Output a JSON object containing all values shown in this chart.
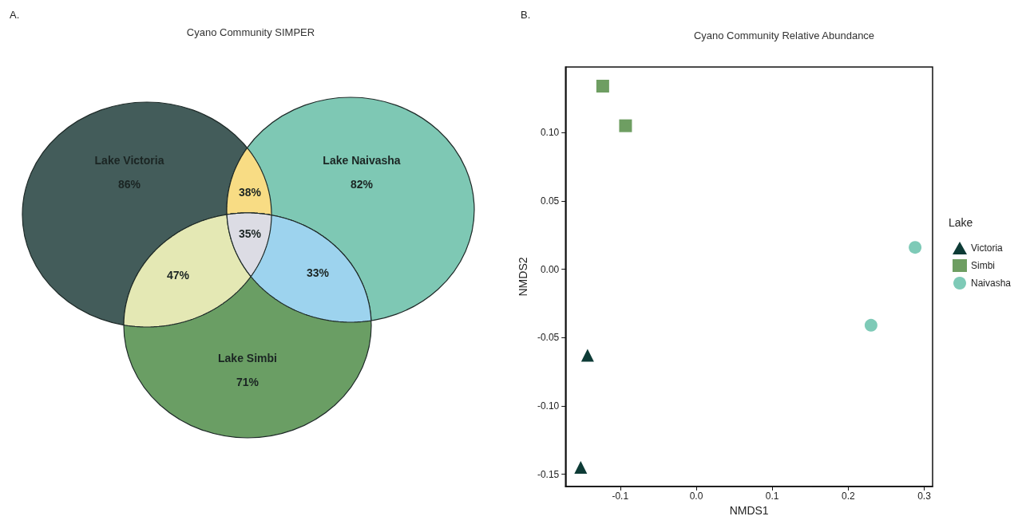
{
  "chart_data": [
    {
      "type": "other",
      "title": "Cyano Community SIMPER",
      "annotations": [
        "A."
      ],
      "categories": [
        "Lake Victoria",
        "Lake Naivasha",
        "Lake Simbi",
        null,
        null,
        null,
        null
      ],
      "value_labels": [
        "86%",
        "82%",
        "71%",
        "38%",
        "47%",
        "33%",
        "35%"
      ],
      "colors": [
        "#435c5a",
        "#7ec8b4",
        "#6a9e64",
        "#f8dc84",
        "#e4e8b4",
        "#9dd3ee",
        "#dcdce4"
      ]
    },
    {
      "type": "scatter",
      "title": "Cyano Community Relative Abundance",
      "annotations": [
        "B."
      ],
      "xlabel": "NMDS1",
      "ylabel": "NMDS2",
      "legend_title": "Lake",
      "legend": "right",
      "grid": false,
      "xlim": [
        -0.172,
        0.311
      ],
      "xticks": [
        -0.1,
        {
          "value": 0,
          "label": "0.0"
        },
        0.1,
        0.2,
        0.3
      ],
      "ylim": [
        -0.159,
        0.148
      ],
      "yticks": [
        -0.15,
        {
          "value": -0.1,
          "label": "-0.10"
        },
        -0.05,
        {
          "value": 0,
          "label": "0.00"
        },
        0.05,
        {
          "value": 0.1,
          "label": "0.10"
        }
      ],
      "series": [
        {
          "name": "Victoria",
          "color": "#0d3b36",
          "marker": "triangle",
          "x": [
            -0.143,
            -0.152
          ],
          "values": [
            -0.063,
            -0.145
          ]
        },
        {
          "name": "Simbi",
          "color": "#6e9e62",
          "marker": "square",
          "x": [
            -0.123,
            -0.093
          ],
          "values": [
            0.134,
            0.105
          ]
        },
        {
          "name": "Naivasha",
          "color": "#7ecab7",
          "marker": "circle",
          "x": [
            0.23,
            0.288
          ],
          "values": [
            -0.041,
            0.016
          ]
        }
      ]
    }
  ]
}
